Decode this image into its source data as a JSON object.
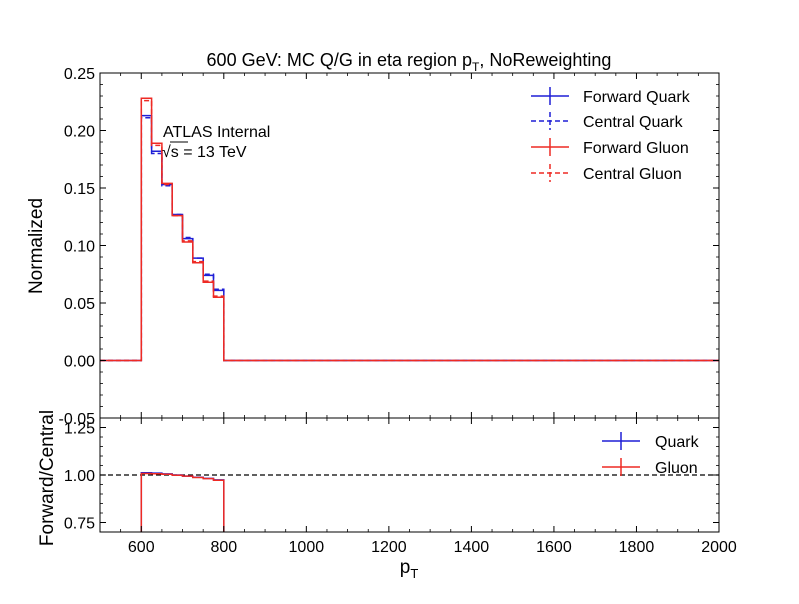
{
  "chart_data": [
    {
      "type": "line",
      "title_main": "600 GeV: MC Q/G in eta region p",
      "title_sub": "T",
      "title_rest": ", NoReweighting",
      "ylabel": "Normalized",
      "xlim": [
        500,
        2000
      ],
      "ylim": [
        -0.05,
        0.25
      ],
      "yticks": [
        "0.25",
        "0.20",
        "0.15",
        "0.10",
        "0.05",
        "0.00",
        "-0.05"
      ],
      "ytick_values": [
        0.25,
        0.2,
        0.15,
        0.1,
        0.05,
        0.0,
        -0.05
      ],
      "annotation_line1": "ATLAS Internal",
      "annotation_sqrt": "√s",
      "annotation_line2": " =  13 TeV",
      "bin_edges": [
        500,
        600,
        625,
        650,
        675,
        700,
        725,
        750,
        775,
        800,
        2000
      ],
      "legend_position": "top-right",
      "series": [
        {
          "name": "Forward Quark",
          "style": "solid",
          "color": "#1f1fd6",
          "values": [
            0.0,
            0.213,
            0.182,
            0.153,
            0.127,
            0.106,
            0.089,
            0.074,
            0.061,
            0.0
          ]
        },
        {
          "name": "Central Quark",
          "style": "dashed",
          "color": "#1f1fd6",
          "values": [
            0.0,
            0.211,
            0.18,
            0.152,
            0.127,
            0.107,
            0.089,
            0.075,
            0.062,
            0.0
          ]
        },
        {
          "name": "Forward Gluon",
          "style": "solid",
          "color": "#ee2a24",
          "values": [
            0.0,
            0.228,
            0.189,
            0.154,
            0.126,
            0.103,
            0.085,
            0.068,
            0.055,
            0.0
          ]
        },
        {
          "name": "Central Gluon",
          "style": "dashed",
          "color": "#ee2a24",
          "values": [
            0.0,
            0.226,
            0.187,
            0.153,
            0.126,
            0.104,
            0.086,
            0.069,
            0.056,
            0.0
          ]
        }
      ]
    },
    {
      "type": "line",
      "ylabel": "Forward/Central",
      "xlabel_main": "p",
      "xlabel_sub": "T",
      "xlim": [
        500,
        2000
      ],
      "ylim": [
        0.7,
        1.3
      ],
      "xticks": [
        "600",
        "800",
        "1000",
        "1200",
        "1400",
        "1600",
        "1800",
        "2000"
      ],
      "xtick_values": [
        600,
        800,
        1000,
        1200,
        1400,
        1600,
        1800,
        2000
      ],
      "yticks": [
        "1.25",
        "1.00",
        "0.75"
      ],
      "ytick_values": [
        1.25,
        1.0,
        0.75
      ],
      "reference_line": 1.0,
      "bin_edges": [
        600,
        625,
        650,
        675,
        700,
        725,
        750,
        775,
        800
      ],
      "legend_position": "top-right",
      "series": [
        {
          "name": "Quark",
          "style": "solid",
          "color": "#1f1fd6",
          "values": [
            1.012,
            1.01,
            1.006,
            1.0,
            0.994,
            0.988,
            0.982,
            0.974
          ]
        },
        {
          "name": "Gluon",
          "style": "solid",
          "color": "#ee2a24",
          "values": [
            1.008,
            1.007,
            1.004,
            0.999,
            0.994,
            0.987,
            0.981,
            0.972
          ]
        }
      ]
    }
  ]
}
